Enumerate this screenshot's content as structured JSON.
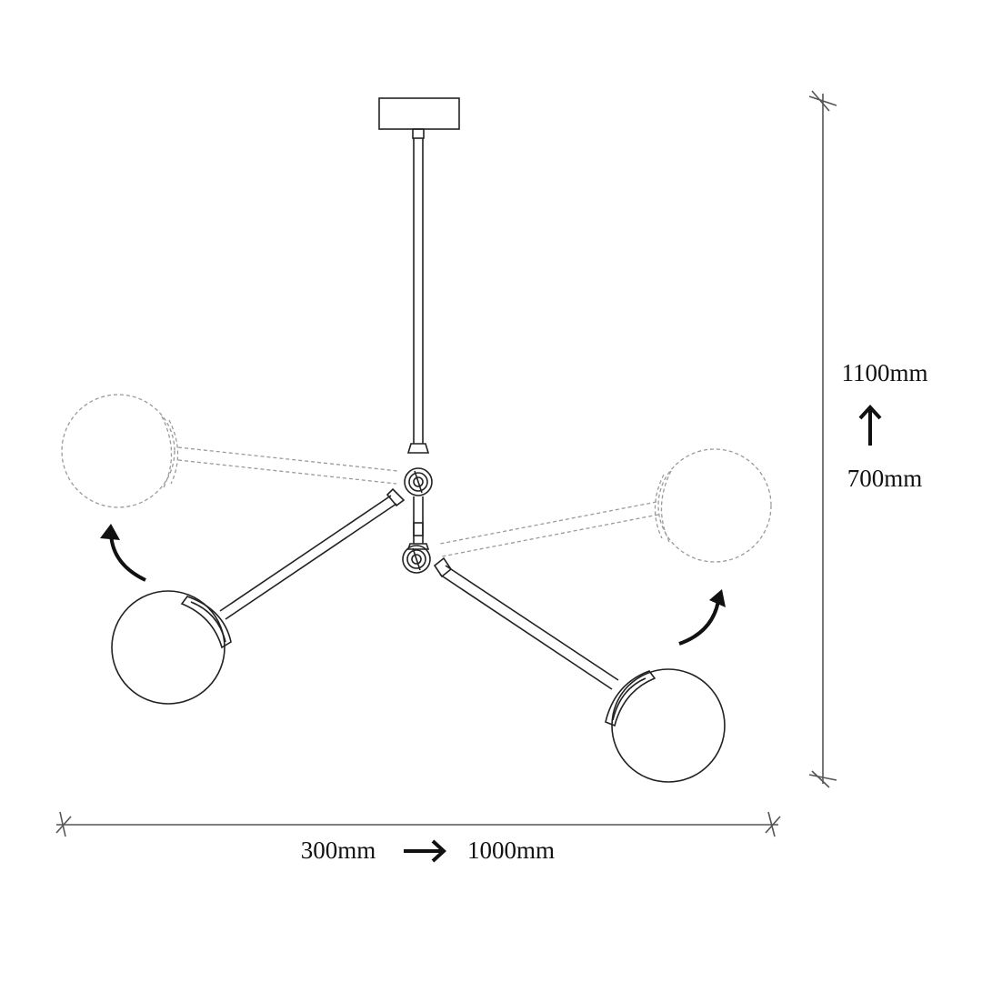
{
  "dimensions": {
    "height_max": "1100mm",
    "height_min": "700mm",
    "height_arrow_icon": "arrow-up",
    "width_min": "300mm",
    "width_max": "1000mm",
    "width_arrow_icon": "arrow-right"
  },
  "colors": {
    "line": "#222222",
    "ghost_line": "#9a9a9a",
    "dimension_line": "#555555"
  }
}
